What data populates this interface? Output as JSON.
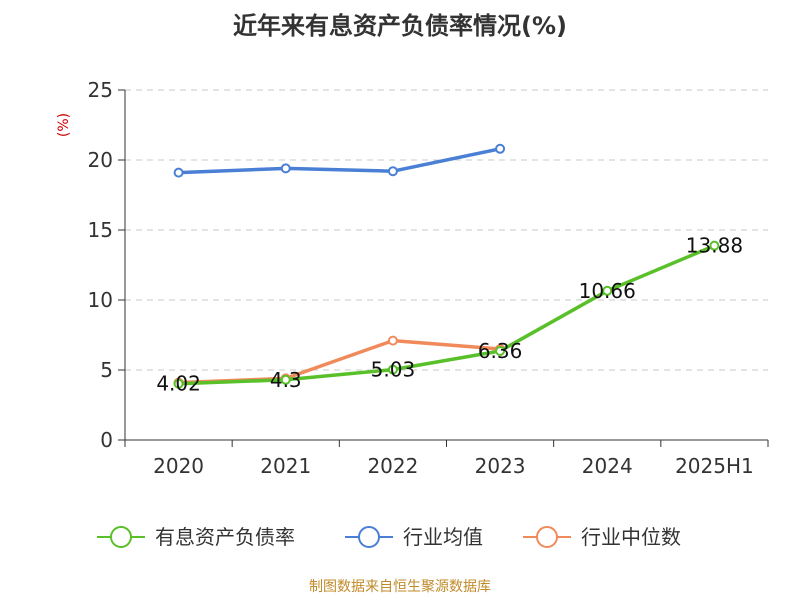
{
  "chart_data": {
    "type": "line",
    "title": "近年来有息资产负债率情况(%)",
    "ylabel": "(%)",
    "categories": [
      "2020",
      "2021",
      "2022",
      "2023",
      "2024",
      "2025H1"
    ],
    "ylim": [
      0,
      25
    ],
    "yticks": [
      0,
      5,
      10,
      15,
      20,
      25
    ],
    "grid": true,
    "legend_position": "bottom",
    "series": [
      {
        "name": "有息资产负债率",
        "color": "#5ac02a",
        "values": [
          4.02,
          4.3,
          5.03,
          6.36,
          10.66,
          13.88
        ],
        "labels": [
          "4.02",
          "4.3",
          "5.03",
          "6.36",
          "10.66",
          "13.88"
        ]
      },
      {
        "name": "行业均值",
        "color": "#4a7fd6",
        "values": [
          19.1,
          19.4,
          19.2,
          20.8,
          null,
          null
        ]
      },
      {
        "name": "行业中位数",
        "color": "#f18a5a",
        "values": [
          4.1,
          4.4,
          7.1,
          6.5,
          null,
          null
        ]
      }
    ],
    "source": "制图数据来自恒生聚源数据库"
  }
}
